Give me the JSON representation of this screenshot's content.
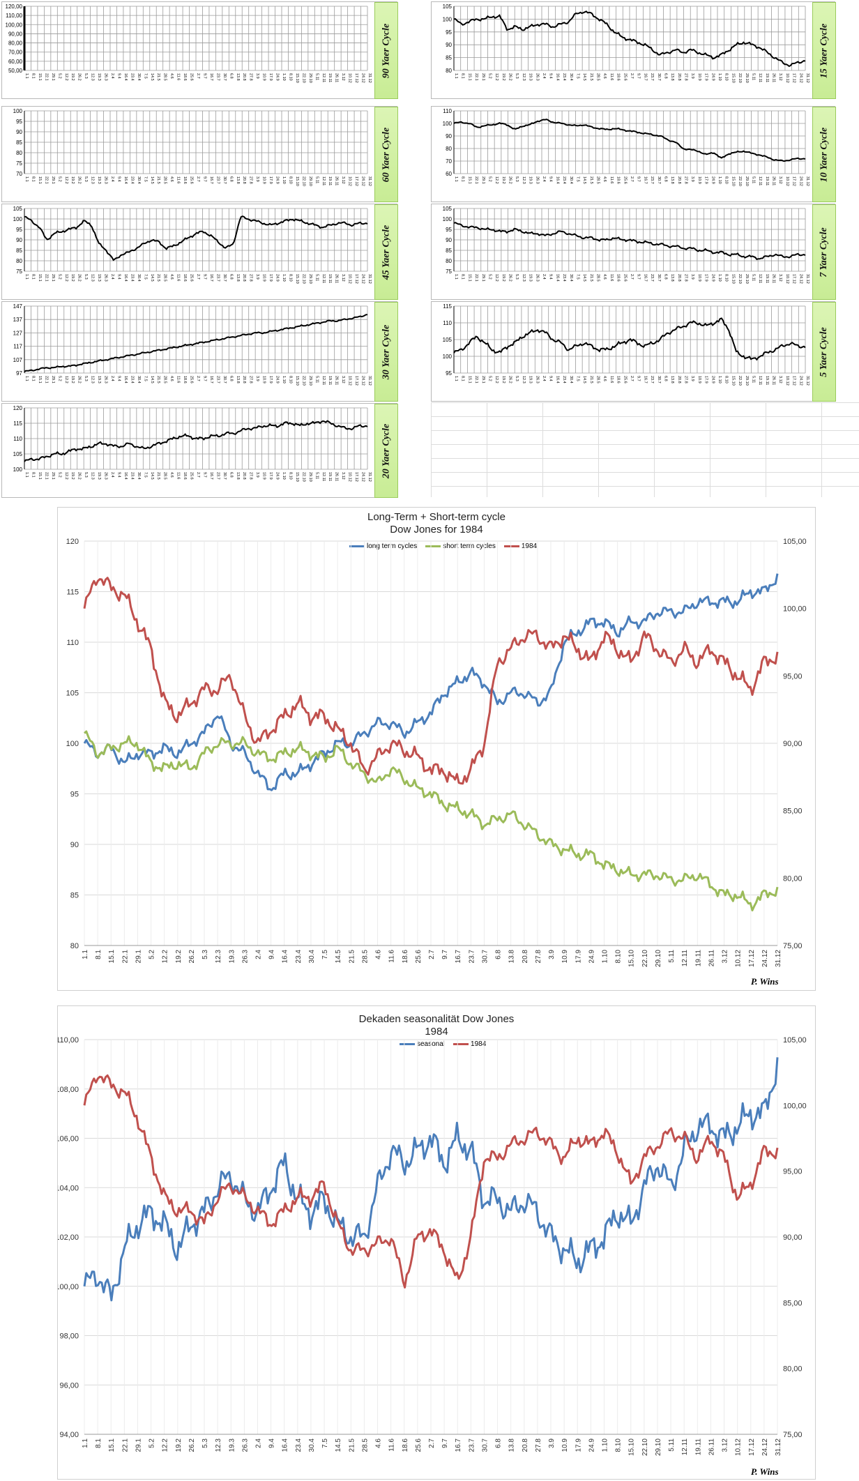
{
  "small_charts": [
    {
      "id": "c90",
      "label": "90 Yaer Cycle",
      "yticks": [
        "50,00",
        "60,00",
        "70,00",
        "80,00",
        "90,00",
        "100,00",
        "110,00",
        "120,00"
      ],
      "ymin": 50,
      "ymax": 120,
      "series": []
    },
    {
      "id": "c15",
      "label": "15 Yaer Cycle",
      "yticks": [
        "80",
        "85",
        "90",
        "95",
        "100",
        "105"
      ],
      "ymin": 80,
      "ymax": 105,
      "series": [
        100,
        98,
        99,
        100,
        100,
        101,
        101,
        96,
        97,
        96,
        97,
        98,
        98,
        97,
        98,
        99,
        102,
        103,
        102,
        100,
        98,
        95,
        93,
        92,
        91,
        90,
        88,
        86,
        87,
        88,
        87,
        88,
        87,
        86,
        85,
        86,
        88,
        90,
        91,
        90,
        89,
        87,
        85,
        83,
        82,
        83,
        84
      ]
    },
    {
      "id": "c60",
      "label": "60 Yaer Cycle",
      "yticks": [
        "70",
        "75",
        "80",
        "85",
        "90",
        "95",
        "100"
      ],
      "ymin": 70,
      "ymax": 100,
      "series": []
    },
    {
      "id": "c10",
      "label": "10 Yaer Cycle",
      "yticks": [
        "60",
        "70",
        "80",
        "90",
        "100",
        "110"
      ],
      "ymin": 60,
      "ymax": 110,
      "series": [
        100,
        101,
        100,
        97,
        98,
        99,
        100,
        99,
        95,
        98,
        99,
        102,
        103,
        101,
        100,
        99,
        98,
        99,
        97,
        96,
        95,
        96,
        95,
        94,
        93,
        92,
        91,
        90,
        87,
        85,
        80,
        79,
        78,
        75,
        77,
        72,
        76,
        77,
        78,
        76,
        75,
        73,
        71,
        70,
        71,
        72,
        72
      ]
    },
    {
      "id": "c45",
      "label": "45 Yaer Cycle",
      "yticks": [
        "75",
        "80",
        "85",
        "90",
        "95",
        "100",
        "105"
      ],
      "ymin": 75,
      "ymax": 105,
      "series": [
        101,
        99,
        96,
        90,
        93,
        94,
        95,
        96,
        99,
        97,
        88,
        85,
        80,
        83,
        84,
        86,
        88,
        90,
        89,
        86,
        87,
        89,
        91,
        93,
        94,
        92,
        89,
        86,
        88,
        101,
        100,
        99,
        98,
        97,
        98,
        99,
        100,
        99,
        98,
        97,
        96,
        97,
        98,
        98,
        97,
        98,
        98
      ]
    },
    {
      "id": "c7",
      "label": "7 Yaer Cycle",
      "yticks": [
        "75",
        "80",
        "85",
        "90",
        "95",
        "100",
        "105"
      ],
      "ymin": 75,
      "ymax": 105,
      "series": [
        98,
        97,
        96,
        96,
        95,
        95,
        94,
        94,
        95,
        94,
        93,
        93,
        92,
        93,
        94,
        93,
        92,
        91,
        91,
        90,
        90,
        91,
        90,
        90,
        89,
        89,
        88,
        88,
        87,
        87,
        86,
        86,
        85,
        85,
        84,
        84,
        83,
        83,
        82,
        82,
        81,
        82,
        83,
        82,
        82,
        83,
        83
      ]
    },
    {
      "id": "c30",
      "label": "30 Yaer Cycle",
      "yticks": [
        "97",
        "107",
        "117",
        "127",
        "137",
        "147"
      ],
      "ymin": 97,
      "ymax": 147,
      "series": [
        98,
        99,
        100,
        101,
        101,
        102,
        102,
        103,
        104,
        105,
        106,
        107,
        108,
        109,
        110,
        111,
        112,
        113,
        114,
        115,
        116,
        117,
        118,
        119,
        120,
        121,
        122,
        123,
        124,
        125,
        126,
        127,
        127,
        128,
        129,
        130,
        131,
        132,
        133,
        134,
        135,
        136,
        136,
        137,
        138,
        139,
        141
      ]
    },
    {
      "id": "c5",
      "label": "5 Yaer Cycle",
      "yticks": [
        "95",
        "100",
        "105",
        "110",
        "115"
      ],
      "ymin": 95,
      "ymax": 115,
      "series": [
        101,
        102,
        104,
        106,
        104,
        102,
        101,
        103,
        104,
        106,
        107,
        108,
        107,
        105,
        104,
        102,
        103,
        104,
        103,
        102,
        102,
        103,
        104,
        105,
        104,
        103,
        104,
        105,
        107,
        108,
        109,
        110,
        110,
        109,
        110,
        111,
        108,
        101,
        100,
        99,
        100,
        101,
        102,
        103,
        104,
        103,
        103
      ]
    },
    {
      "id": "c20",
      "label": "20 Yaer Cycle",
      "yticks": [
        "100",
        "105",
        "110",
        "115",
        "120"
      ],
      "ymin": 97,
      "ymax": 121,
      "series": [
        100,
        101,
        101,
        102,
        103,
        103,
        104,
        105,
        105,
        106,
        107,
        107,
        106,
        106,
        107,
        106,
        105,
        106,
        107,
        108,
        109,
        110,
        110,
        109,
        109,
        110,
        110,
        111,
        111,
        112,
        113,
        113,
        114,
        114,
        114,
        115,
        115,
        114,
        115,
        115,
        116,
        115,
        114,
        113,
        113,
        114,
        114
      ]
    }
  ],
  "date_ticks": [
    "1.1",
    "8.1",
    "15.1",
    "22.1",
    "29.1",
    "5.2",
    "12.2",
    "19.2",
    "26.2",
    "5.3",
    "12.3",
    "19.3",
    "26.3",
    "2.4",
    "9.4",
    "16.4",
    "23.4",
    "30.4",
    "7.5",
    "14.5",
    "21.5",
    "28.5",
    "4.6",
    "11.6",
    "18.6",
    "25.6",
    "2.7",
    "9.7",
    "16.7",
    "23.7",
    "30.7",
    "6.8",
    "13.8",
    "20.8",
    "27.8",
    "3.9",
    "10.9",
    "17.9",
    "24.9",
    "1.10",
    "8.10",
    "15.10",
    "22.10",
    "29.10",
    "5.11",
    "12.11",
    "19.11",
    "26.11",
    "3.12",
    "10.12",
    "17.12",
    "24.12",
    "31.12"
  ],
  "chart1": {
    "title": "Long-Term + Short-term cycle",
    "subtitle": "Dow Jones for 1984",
    "left_axis": {
      "min": 80,
      "max": 120,
      "ticks": [
        "80",
        "85",
        "90",
        "95",
        "100",
        "105",
        "110",
        "115",
        "120"
      ]
    },
    "right_axis": {
      "min": 75,
      "max": 105,
      "ticks": [
        "75,00",
        "80,00",
        "85,00",
        "90,00",
        "95,00",
        "100,00",
        "105,00"
      ]
    },
    "legend": [
      "long term cycles",
      "short term cycles",
      "1984"
    ],
    "signature": "P. Wins",
    "colors": {
      "long": "#4a7ebb",
      "short": "#9bbb59",
      "y1984": "#c0504d"
    }
  },
  "chart2": {
    "title": "Dekaden seasonalität Dow Jones",
    "subtitle": "1984",
    "left_axis": {
      "min": 94,
      "max": 110,
      "ticks": [
        "94,00",
        "96,00",
        "98,00",
        "100,00",
        "102,00",
        "104,00",
        "106,00",
        "108,00",
        "110,00"
      ]
    },
    "right_axis": {
      "min": 75,
      "max": 105,
      "ticks": [
        "75,00",
        "80,00",
        "85,00",
        "90,00",
        "95,00",
        "100,00",
        "105,00"
      ]
    },
    "legend": [
      "seasonal",
      "1984"
    ],
    "signature": "P. Wins",
    "colors": {
      "seasonal": "#4a7ebb",
      "y1984": "#c0504d"
    }
  },
  "chart_data": [
    {
      "type": "line",
      "title": "Long-Term + Short-term cycle",
      "subtitle": "Dow Jones for 1984",
      "categories_ref": "date_ticks",
      "ylim": [
        80,
        120
      ],
      "y2lim": [
        75,
        105
      ],
      "series": [
        {
          "name": "long term cycles",
          "axis": "left",
          "values": [
            100,
            99,
            99.5,
            98,
            99,
            99,
            99.5,
            99,
            100,
            101,
            103,
            100,
            99,
            97,
            95.5,
            97,
            97,
            98,
            99,
            100,
            100,
            101,
            102,
            102,
            101,
            102,
            103,
            105,
            106,
            107,
            106,
            104,
            105,
            105,
            104,
            105,
            110,
            111,
            112,
            112,
            111,
            112,
            112,
            113,
            113,
            113,
            114,
            114,
            114,
            114,
            115,
            115,
            116.5
          ]
        },
        {
          "name": "short term cycles",
          "axis": "left",
          "values": [
            101,
            99,
            99.5,
            100,
            100,
            98,
            97.5,
            98,
            97.5,
            99,
            100,
            100,
            100,
            99,
            98.5,
            99,
            99.5,
            99,
            98.5,
            99.5,
            98,
            97,
            96,
            97.5,
            96.5,
            95.5,
            95,
            94,
            93.5,
            93,
            92,
            92.5,
            93,
            92,
            91,
            90,
            89.5,
            89,
            89,
            88,
            87.5,
            87,
            87,
            87,
            86.5,
            86.5,
            87,
            86,
            85,
            85,
            84,
            85,
            85.5
          ]
        },
        {
          "name": "1984",
          "axis": "right",
          "values": [
            100,
            102.5,
            101.5,
            101,
            99,
            97,
            93,
            92,
            93,
            94,
            94,
            95,
            92,
            90,
            91,
            92,
            93,
            92,
            92,
            91,
            90,
            88,
            89,
            90,
            89.5,
            89,
            88,
            88,
            87,
            88,
            90,
            96,
            97,
            98,
            98,
            97,
            98,
            97,
            96,
            98,
            97,
            96,
            98,
            97,
            96,
            97,
            96,
            97,
            96,
            95,
            94,
            96,
            96.5
          ]
        }
      ]
    },
    {
      "type": "line",
      "title": "Dekaden seasonalität Dow Jones",
      "subtitle": "1984",
      "categories_ref": "date_ticks",
      "ylim": [
        94,
        110
      ],
      "y2lim": [
        75,
        105
      ],
      "series": [
        {
          "name": "seasonal",
          "axis": "left",
          "values": [
            100,
            100.5,
            99.5,
            101.5,
            102.5,
            103,
            102.5,
            101.5,
            102.5,
            103,
            104,
            104.5,
            103.5,
            103,
            104,
            105,
            103.5,
            103,
            103.5,
            102.5,
            102,
            102,
            104,
            105.5,
            105,
            105.5,
            106,
            105,
            106,
            105.5,
            103.5,
            103.5,
            103,
            103.5,
            103,
            102,
            101.5,
            101,
            101.5,
            102,
            103,
            102.5,
            104,
            105,
            104,
            105.5,
            106.5,
            106.5,
            106,
            106.5,
            107,
            107,
            109
          ]
        },
        {
          "name": "1984",
          "axis": "right",
          "values": [
            100,
            102.5,
            101.5,
            101,
            99,
            96,
            93,
            92,
            92,
            91,
            93,
            94,
            93,
            92,
            91,
            92,
            93,
            93,
            94,
            91,
            89,
            89,
            89.5,
            90,
            86.5,
            90,
            90.5,
            89,
            86.5,
            90,
            96,
            96,
            97,
            97.5,
            98,
            97,
            96,
            97.5,
            97,
            98,
            96.5,
            94,
            96,
            97,
            98,
            97.5,
            96,
            97.5,
            96,
            93,
            94,
            96.5,
            96.5
          ]
        }
      ]
    }
  ]
}
